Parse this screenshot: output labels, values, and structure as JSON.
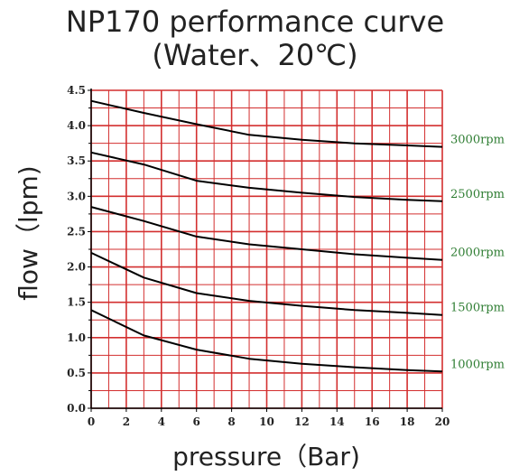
{
  "chart_data": {
    "type": "line",
    "title": "NP170 performance curve",
    "subtitle": "(Water、20℃)",
    "xlabel": "pressure（Bar)",
    "ylabel": "flow（lpm)",
    "xlim": [
      0,
      20
    ],
    "ylim": [
      0,
      4.5
    ],
    "x_ticks": [
      "0",
      "2",
      "4",
      "6",
      "8",
      "10",
      "12",
      "14",
      "16",
      "18",
      "20"
    ],
    "y_ticks": [
      "0.0",
      "0.5",
      "1.0",
      "1.5",
      "2.0",
      "2.5",
      "3.0",
      "3.5",
      "4.0",
      "4.5"
    ],
    "grid": true,
    "grid_color": "#d32f2f",
    "line_color": "#000000",
    "label_color": "#2e7d32",
    "series": [
      {
        "name": "3000rpm",
        "x": [
          0,
          3,
          6,
          9,
          12,
          15,
          18,
          20
        ],
        "y": [
          4.35,
          4.18,
          4.02,
          3.87,
          3.8,
          3.75,
          3.72,
          3.7
        ]
      },
      {
        "name": "2500rpm",
        "x": [
          0,
          3,
          6,
          9,
          12,
          15,
          18,
          20
        ],
        "y": [
          3.62,
          3.45,
          3.22,
          3.12,
          3.05,
          2.99,
          2.95,
          2.93
        ]
      },
      {
        "name": "2000rpm",
        "x": [
          0,
          3,
          6,
          9,
          12,
          15,
          18,
          20
        ],
        "y": [
          2.85,
          2.65,
          2.43,
          2.32,
          2.25,
          2.18,
          2.13,
          2.1
        ]
      },
      {
        "name": "1500rpm",
        "x": [
          0,
          3,
          6,
          9,
          12,
          15,
          18,
          20
        ],
        "y": [
          2.2,
          1.85,
          1.63,
          1.52,
          1.45,
          1.39,
          1.35,
          1.32
        ]
      },
      {
        "name": "1000rpm",
        "x": [
          0,
          3,
          6,
          9,
          12,
          15,
          18,
          20
        ],
        "y": [
          1.39,
          1.03,
          0.83,
          0.7,
          0.63,
          0.58,
          0.54,
          0.52
        ]
      }
    ]
  }
}
